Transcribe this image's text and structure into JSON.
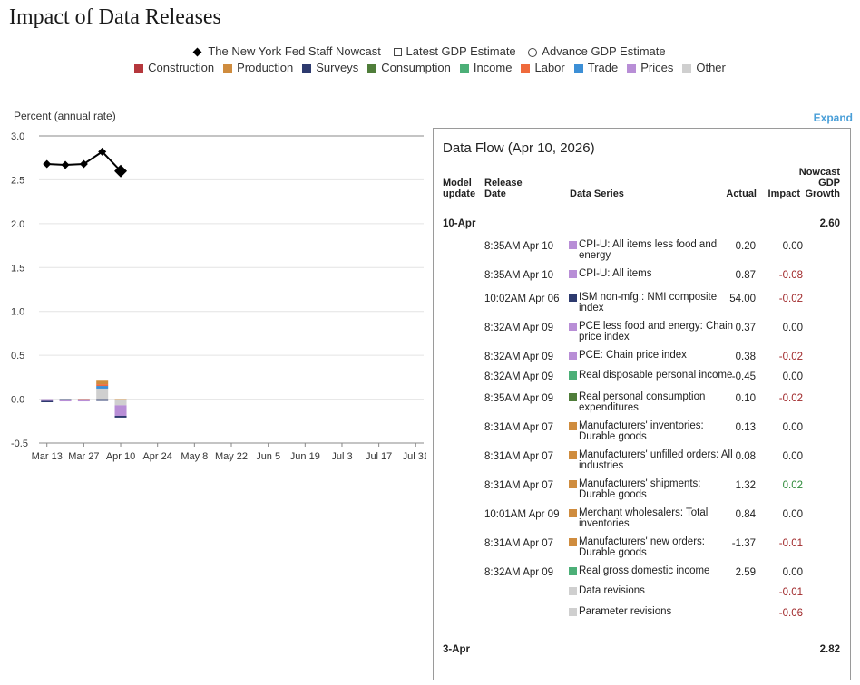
{
  "page_title": "Impact of Data Releases",
  "legend": {
    "nowcast": "The New York Fed Staff Nowcast",
    "latest_gdp": "Latest GDP Estimate",
    "advance_gdp": "Advance GDP Estimate",
    "categories": [
      {
        "name": "Construction",
        "color": "#b5373c"
      },
      {
        "name": "Production",
        "color": "#cf8c3e"
      },
      {
        "name": "Surveys",
        "color": "#2d3a6e"
      },
      {
        "name": "Consumption",
        "color": "#4f7d3a"
      },
      {
        "name": "Income",
        "color": "#4caf77"
      },
      {
        "name": "Labor",
        "color": "#ef6a3c"
      },
      {
        "name": "Trade",
        "color": "#3c8fd6"
      },
      {
        "name": "Prices",
        "color": "#b88ed6"
      },
      {
        "name": "Other",
        "color": "#cfcfcf"
      }
    ]
  },
  "y_axis_label": "Percent (annual rate)",
  "expand_label": "Expand",
  "chart_data": {
    "type": "line",
    "ylabel": "Percent (annual rate)",
    "ylim": [
      -0.5,
      3.0
    ],
    "yticks": [
      "3.0",
      "2.5",
      "2.0",
      "1.5",
      "1.0",
      "0.5",
      "0.0",
      "-0.5"
    ],
    "ytick_values": [
      3.0,
      2.5,
      2.0,
      1.5,
      1.0,
      0.5,
      0.0,
      -0.5
    ],
    "x_tick_labels": [
      "Mar 13",
      "Mar 27",
      "Apr 10",
      "Apr 24",
      "May 8",
      "May 22",
      "Jun 5",
      "Jun 19",
      "Jul 3",
      "Jul 17",
      "Jul 31"
    ],
    "x_tick_days": [
      0,
      14,
      28,
      42,
      56,
      70,
      84,
      98,
      112,
      126,
      140
    ],
    "x_range_days": [
      -3,
      143
    ],
    "grid": true,
    "nowcast_series": {
      "name": "The New York Fed Staff Nowcast",
      "dates": [
        "Mar 13",
        "Mar 20",
        "Mar 27",
        "Apr 3",
        "Apr 10"
      ],
      "x_days": [
        0,
        7,
        14,
        21,
        28
      ],
      "values": [
        2.68,
        2.67,
        2.68,
        2.82,
        2.6
      ]
    },
    "impact_bars": [
      {
        "date": "Mar 13",
        "x_day": 0,
        "segments": [
          {
            "category": "Prices",
            "value": -0.02
          },
          {
            "category": "Surveys",
            "value": -0.01
          }
        ]
      },
      {
        "date": "Mar 20",
        "x_day": 7,
        "segments": [
          {
            "category": "Surveys",
            "value": -0.01
          },
          {
            "category": "Prices",
            "value": -0.01
          }
        ]
      },
      {
        "date": "Mar 27",
        "x_day": 14,
        "segments": [
          {
            "category": "Construction",
            "value": -0.01
          },
          {
            "category": "Prices",
            "value": -0.01
          }
        ]
      },
      {
        "date": "Apr 3",
        "x_day": 21,
        "segments": [
          {
            "category": "Other",
            "value": 0.12
          },
          {
            "category": "Trade",
            "value": 0.03
          },
          {
            "category": "Labor",
            "value": 0.02
          },
          {
            "category": "Production",
            "value": 0.05
          },
          {
            "category": "Surveys",
            "value": -0.02
          }
        ]
      },
      {
        "date": "Apr 10",
        "x_day": 28,
        "segments": [
          {
            "category": "Production",
            "value": -0.01
          },
          {
            "category": "Other",
            "value": -0.06
          },
          {
            "category": "Prices",
            "value": -0.12
          },
          {
            "category": "Surveys",
            "value": -0.02
          }
        ]
      }
    ]
  },
  "data_flow": {
    "title": "Data Flow (Apr 10, 2026)",
    "headers": {
      "model_update": "Model\nupdate",
      "release_date": "Release\nDate",
      "data_series": "Data Series",
      "actual": "Actual",
      "impact": "Impact",
      "nowcast_growth": "Nowcast\nGDP\nGrowth"
    },
    "groups": [
      {
        "date": "10-Apr",
        "nowcast": "2.60",
        "rows": [
          {
            "release": "8:35AM Apr 10",
            "series": "CPI-U: All items less food and energy",
            "category": "Prices",
            "actual": "0.20",
            "impact": "0.00",
            "sign": "zero"
          },
          {
            "release": "8:35AM Apr 10",
            "series": "CPI-U: All items",
            "category": "Prices",
            "actual": "0.87",
            "impact": "-0.08",
            "sign": "neg"
          },
          {
            "release": "10:02AM Apr 06",
            "series": "ISM non-mfg.: NMI composite index",
            "category": "Surveys",
            "actual": "54.00",
            "impact": "-0.02",
            "sign": "neg"
          },
          {
            "release": "8:32AM Apr 09",
            "series": "PCE less food and energy: Chain price index",
            "category": "Prices",
            "actual": "0.37",
            "impact": "0.00",
            "sign": "zero"
          },
          {
            "release": "8:32AM Apr 09",
            "series": "PCE: Chain price index",
            "category": "Prices",
            "actual": "0.38",
            "impact": "-0.02",
            "sign": "neg"
          },
          {
            "release": "8:32AM Apr 09",
            "series": "Real disposable personal income",
            "category": "Income",
            "actual": "-0.45",
            "impact": "0.00",
            "sign": "zero"
          },
          {
            "release": "8:35AM Apr 09",
            "series": "Real personal consumption expenditures",
            "category": "Consumption",
            "actual": "0.10",
            "impact": "-0.02",
            "sign": "neg"
          },
          {
            "release": "8:31AM Apr 07",
            "series": "Manufacturers' inventories: Durable goods",
            "category": "Production",
            "actual": "0.13",
            "impact": "0.00",
            "sign": "zero"
          },
          {
            "release": "8:31AM Apr 07",
            "series": "Manufacturers' unfilled orders: All industries",
            "category": "Production",
            "actual": "0.08",
            "impact": "0.00",
            "sign": "zero"
          },
          {
            "release": "8:31AM Apr 07",
            "series": "Manufacturers' shipments: Durable goods",
            "category": "Production",
            "actual": "1.32",
            "impact": "0.02",
            "sign": "pos"
          },
          {
            "release": "10:01AM Apr 09",
            "series": "Merchant wholesalers: Total inventories",
            "category": "Production",
            "actual": "0.84",
            "impact": "0.00",
            "sign": "zero"
          },
          {
            "release": "8:31AM Apr 07",
            "series": "Manufacturers' new orders: Durable goods",
            "category": "Production",
            "actual": "-1.37",
            "impact": "-0.01",
            "sign": "neg"
          },
          {
            "release": "8:32AM Apr 09",
            "series": "Real gross domestic income",
            "category": "Income",
            "actual": "2.59",
            "impact": "0.00",
            "sign": "zero"
          },
          {
            "release": "",
            "series": "Data revisions",
            "category": "Other",
            "actual": "",
            "impact": "-0.01",
            "sign": "neg"
          },
          {
            "release": "",
            "series": "Parameter revisions",
            "category": "Other",
            "actual": "",
            "impact": "-0.06",
            "sign": "neg"
          }
        ]
      },
      {
        "date": "3-Apr",
        "nowcast": "2.82",
        "rows": []
      }
    ]
  }
}
